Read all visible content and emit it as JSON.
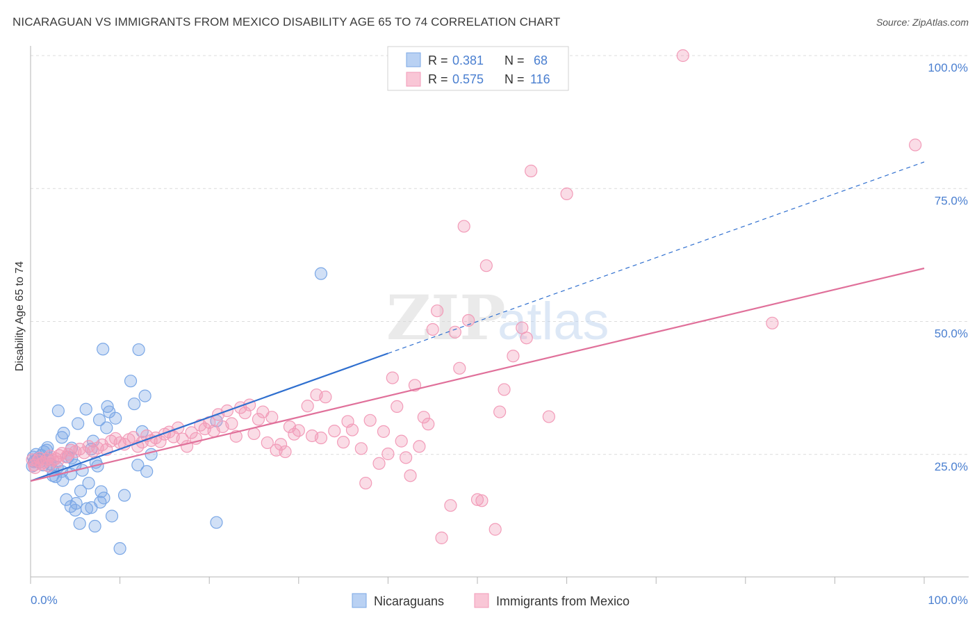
{
  "title": "NICARAGUAN VS IMMIGRANTS FROM MEXICO DISABILITY AGE 65 TO 74 CORRELATION CHART",
  "source": "Source: ZipAtlas.com",
  "watermark": {
    "zip": "ZIP",
    "atlas": "atlas"
  },
  "colors": {
    "blue": "#7aa7e6",
    "blue_line": "#2f6fcf",
    "pink": "#f29bb8",
    "pink_line": "#e0709a",
    "axis_text": "#4a7fd0",
    "grid": "#dcdcdc"
  },
  "legend": {
    "rows": [
      {
        "r_label": "R =",
        "r_value": "0.381",
        "n_label": "N =",
        "n_value": "68",
        "color": "blue"
      },
      {
        "r_label": "R =",
        "r_value": "0.575",
        "n_label": "N =",
        "n_value": "116",
        "color": "pink"
      }
    ]
  },
  "bottom_legend": [
    "Nicaraguans",
    "Immigrants from Mexico"
  ],
  "chart_data": {
    "type": "scatter",
    "xlabel": "",
    "ylabel": "Disability Age 65 to 74",
    "xlim": [
      0,
      100
    ],
    "ylim": [
      0,
      100
    ],
    "x_tick_labels": [
      "0.0%",
      "100.0%"
    ],
    "y_ticks": [
      25,
      50,
      75,
      100
    ],
    "y_tick_labels": [
      "25.0%",
      "50.0%",
      "75.0%",
      "100.0%"
    ],
    "grid": true,
    "legend_position": "top-center",
    "series": [
      {
        "name": "Nicaraguans",
        "color": "blue",
        "trend": {
          "x0": 0,
          "y0": 20,
          "x1": 40,
          "y1": 44,
          "dashed_to_x": 100,
          "dashed_to_y": 80
        },
        "points": [
          [
            0.3,
            24.5
          ],
          [
            0.5,
            23.8
          ],
          [
            0.6,
            25.0
          ],
          [
            0.8,
            24.2
          ],
          [
            1.0,
            23.5
          ],
          [
            1.2,
            24.8
          ],
          [
            1.4,
            23.0
          ],
          [
            1.5,
            25.5
          ],
          [
            1.8,
            25.8
          ],
          [
            2.0,
            24.0
          ],
          [
            1.9,
            26.3
          ],
          [
            2.2,
            23.2
          ],
          [
            2.5,
            22.0
          ],
          [
            2.5,
            21.0
          ],
          [
            2.8,
            20.8
          ],
          [
            3.0,
            22.5
          ],
          [
            3.1,
            33.2
          ],
          [
            3.5,
            21.8
          ],
          [
            3.6,
            20.1
          ],
          [
            3.5,
            28.2
          ],
          [
            3.7,
            29.0
          ],
          [
            4.0,
            16.5
          ],
          [
            4.2,
            24.5
          ],
          [
            4.5,
            15.2
          ],
          [
            4.5,
            21.3
          ],
          [
            4.6,
            24.3
          ],
          [
            4.6,
            26.2
          ],
          [
            5.0,
            14.5
          ],
          [
            5.0,
            23.0
          ],
          [
            5.1,
            15.8
          ],
          [
            5.3,
            30.8
          ],
          [
            5.5,
            12.0
          ],
          [
            5.6,
            18.1
          ],
          [
            5.8,
            22.0
          ],
          [
            6.2,
            33.5
          ],
          [
            6.3,
            14.8
          ],
          [
            6.5,
            19.6
          ],
          [
            6.8,
            15.0
          ],
          [
            6.8,
            26.0
          ],
          [
            7.0,
            27.5
          ],
          [
            7.2,
            11.5
          ],
          [
            7.3,
            23.5
          ],
          [
            7.5,
            22.8
          ],
          [
            7.7,
            31.5
          ],
          [
            7.8,
            16.0
          ],
          [
            7.9,
            18.0
          ],
          [
            8.1,
            44.8
          ],
          [
            8.2,
            16.8
          ],
          [
            8.5,
            30.0
          ],
          [
            8.6,
            34.0
          ],
          [
            8.8,
            33.0
          ],
          [
            9.1,
            13.4
          ],
          [
            9.5,
            31.8
          ],
          [
            10.0,
            7.3
          ],
          [
            10.5,
            17.3
          ],
          [
            11.2,
            38.8
          ],
          [
            11.6,
            34.5
          ],
          [
            12.0,
            23.0
          ],
          [
            12.1,
            44.7
          ],
          [
            12.5,
            29.3
          ],
          [
            12.8,
            36.0
          ],
          [
            13.0,
            21.8
          ],
          [
            13.5,
            25.0
          ],
          [
            20.8,
            12.2
          ],
          [
            20.8,
            31.3
          ],
          [
            32.5,
            59.0
          ],
          [
            0.2,
            22.8
          ],
          [
            0.4,
            23.6
          ]
        ]
      },
      {
        "name": "Immigrants from Mexico",
        "color": "pink",
        "trend": {
          "x0": 0,
          "y0": 20,
          "x1": 100,
          "y1": 60
        },
        "points": [
          [
            0.2,
            24.0
          ],
          [
            0.4,
            23.0
          ],
          [
            0.5,
            22.5
          ],
          [
            0.8,
            23.8
          ],
          [
            1.0,
            24.3
          ],
          [
            1.2,
            23.2
          ],
          [
            1.5,
            23.5
          ],
          [
            1.8,
            24.1
          ],
          [
            2.0,
            22.8
          ],
          [
            2.2,
            24.7
          ],
          [
            2.5,
            23.9
          ],
          [
            2.8,
            24.2
          ],
          [
            3.0,
            23.6
          ],
          [
            3.2,
            24.8
          ],
          [
            3.5,
            25.2
          ],
          [
            4.0,
            24.5
          ],
          [
            4.2,
            25.0
          ],
          [
            4.5,
            25.8
          ],
          [
            5.0,
            25.5
          ],
          [
            5.5,
            26.0
          ],
          [
            6.0,
            25.3
          ],
          [
            6.5,
            26.5
          ],
          [
            7.0,
            25.6
          ],
          [
            7.5,
            26.2
          ],
          [
            8.0,
            26.8
          ],
          [
            8.5,
            25.9
          ],
          [
            9.0,
            27.5
          ],
          [
            9.5,
            28.0
          ],
          [
            10.0,
            27.2
          ],
          [
            10.5,
            26.9
          ],
          [
            11.0,
            27.8
          ],
          [
            11.5,
            28.2
          ],
          [
            12.0,
            26.5
          ],
          [
            12.5,
            27.3
          ],
          [
            13.0,
            28.5
          ],
          [
            13.5,
            27.6
          ],
          [
            14.0,
            28.1
          ],
          [
            14.5,
            27.4
          ],
          [
            15.0,
            28.8
          ],
          [
            15.5,
            29.2
          ],
          [
            16.0,
            28.3
          ],
          [
            16.5,
            30.0
          ],
          [
            17.0,
            27.9
          ],
          [
            17.5,
            26.5
          ],
          [
            18.0,
            29.1
          ],
          [
            18.5,
            28.0
          ],
          [
            19.0,
            30.5
          ],
          [
            19.5,
            29.8
          ],
          [
            20.0,
            31.0
          ],
          [
            20.5,
            29.4
          ],
          [
            21.0,
            32.5
          ],
          [
            21.5,
            30.2
          ],
          [
            22.0,
            33.2
          ],
          [
            22.5,
            30.8
          ],
          [
            23.0,
            28.4
          ],
          [
            23.5,
            33.8
          ],
          [
            24.0,
            32.8
          ],
          [
            24.5,
            34.3
          ],
          [
            25.0,
            28.9
          ],
          [
            25.5,
            31.6
          ],
          [
            26.0,
            33.0
          ],
          [
            26.5,
            27.2
          ],
          [
            27.0,
            32.0
          ],
          [
            27.5,
            25.8
          ],
          [
            28.0,
            26.9
          ],
          [
            28.5,
            25.5
          ],
          [
            29.0,
            30.2
          ],
          [
            29.5,
            28.8
          ],
          [
            30.0,
            29.5
          ],
          [
            31.0,
            34.1
          ],
          [
            31.5,
            28.5
          ],
          [
            32.0,
            36.2
          ],
          [
            32.5,
            28.1
          ],
          [
            33.0,
            35.8
          ],
          [
            34.0,
            29.4
          ],
          [
            35.0,
            27.3
          ],
          [
            35.5,
            31.2
          ],
          [
            36.0,
            29.6
          ],
          [
            37.0,
            26.1
          ],
          [
            37.5,
            19.6
          ],
          [
            38.0,
            31.4
          ],
          [
            39.0,
            23.3
          ],
          [
            39.5,
            29.3
          ],
          [
            40.0,
            25.1
          ],
          [
            40.5,
            39.4
          ],
          [
            41.0,
            34.0
          ],
          [
            41.5,
            27.5
          ],
          [
            42.0,
            24.4
          ],
          [
            42.5,
            21.0
          ],
          [
            43.0,
            38.0
          ],
          [
            43.5,
            26.5
          ],
          [
            44.0,
            32.0
          ],
          [
            44.5,
            30.7
          ],
          [
            45.0,
            48.5
          ],
          [
            45.5,
            52.0
          ],
          [
            46.0,
            9.3
          ],
          [
            47.0,
            15.4
          ],
          [
            47.5,
            48.0
          ],
          [
            48.0,
            41.2
          ],
          [
            48.5,
            67.9
          ],
          [
            49.0,
            50.2
          ],
          [
            50.0,
            16.5
          ],
          [
            50.5,
            16.3
          ],
          [
            51.0,
            60.5
          ],
          [
            52.0,
            10.9
          ],
          [
            52.5,
            33.0
          ],
          [
            53.0,
            37.2
          ],
          [
            54.0,
            43.5
          ],
          [
            55.0,
            48.8
          ],
          [
            55.5,
            46.9
          ],
          [
            56.0,
            78.3
          ],
          [
            58.0,
            32.1
          ],
          [
            60.0,
            74.0
          ],
          [
            73.0,
            100.0
          ],
          [
            83.0,
            49.7
          ],
          [
            99.0,
            83.2
          ]
        ]
      }
    ]
  }
}
